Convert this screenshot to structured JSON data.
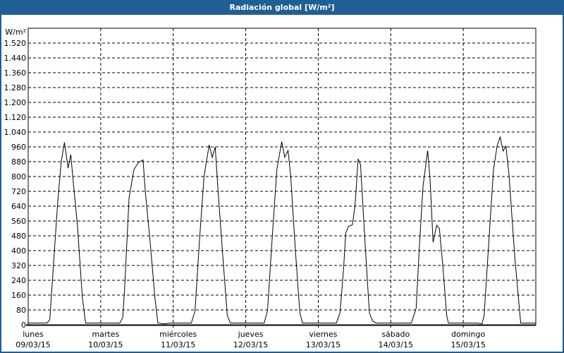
{
  "window": {
    "title": "Radiación global [W/m²]"
  },
  "chart_data": {
    "type": "line",
    "title": "Radiación global [W/m²]",
    "ylabel": "W/m²",
    "ylim": [
      0,
      1600
    ],
    "yticks": [
      0,
      80,
      160,
      240,
      320,
      400,
      480,
      560,
      640,
      720,
      800,
      880,
      960,
      1040,
      1120,
      1200,
      1280,
      1360,
      1440,
      1520
    ],
    "ytick_labels": [
      "0",
      "80",
      "160",
      "240",
      "320",
      "400",
      "480",
      "560",
      "640",
      "720",
      "800",
      "880",
      "960",
      "1.040",
      "1.120",
      "1.200",
      "1.280",
      "1.360",
      "1.440",
      "1.520"
    ],
    "xlim": [
      "09/03/15 00:00",
      "15/03/15 23:59"
    ],
    "xticks": [
      {
        "day": "lunes",
        "date": "09/03/15"
      },
      {
        "day": "martes",
        "date": "10/03/15"
      },
      {
        "day": "miércoles",
        "date": "11/03/15"
      },
      {
        "day": "jueves",
        "date": "12/03/15"
      },
      {
        "day": "viernes",
        "date": "13/03/15"
      },
      {
        "day": "sábado",
        "date": "14/03/15"
      },
      {
        "day": "domingo",
        "date": "15/03/15"
      }
    ],
    "grid": true,
    "line_color": "#000000",
    "series": [
      {
        "points": [
          [
            "09/03/15 00:00",
            9
          ],
          [
            "09/03/15 06:12",
            9
          ],
          [
            "09/03/15 07:09",
            27
          ],
          [
            "09/03/15 07:46",
            178
          ],
          [
            "09/03/15 09:42",
            648
          ],
          [
            "09/03/15 10:54",
            876
          ],
          [
            "09/03/15 12:00",
            984
          ],
          [
            "09/03/15 13:12",
            845
          ],
          [
            "09/03/15 14:06",
            918
          ],
          [
            "09/03/15 14:45",
            800
          ],
          [
            "09/03/15 16:18",
            533
          ],
          [
            "09/03/15 17:54",
            152
          ],
          [
            "09/03/15 19:00",
            9
          ],
          [
            "10/03/15 06:18",
            9
          ],
          [
            "10/03/15 07:18",
            38
          ],
          [
            "10/03/15 07:51",
            178
          ],
          [
            "10/03/15 09:24",
            686
          ],
          [
            "10/03/15 11:00",
            838
          ],
          [
            "10/03/15 12:30",
            876
          ],
          [
            "10/03/15 14:00",
            889
          ],
          [
            "10/03/15 14:48",
            711
          ],
          [
            "10/03/15 16:18",
            457
          ],
          [
            "10/03/15 17:54",
            152
          ],
          [
            "10/03/15 18:54",
            9
          ],
          [
            "10/03/15 21:00",
            5
          ],
          [
            "10/03/15 23:00",
            9
          ],
          [
            "11/03/15 06:00",
            9
          ],
          [
            "11/03/15 07:12",
            76
          ],
          [
            "11/03/15 08:42",
            457
          ],
          [
            "11/03/15 10:12",
            800
          ],
          [
            "11/03/15 11:54",
            971
          ],
          [
            "11/03/15 12:54",
            903
          ],
          [
            "11/03/15 13:54",
            960
          ],
          [
            "11/03/15 14:48",
            735
          ],
          [
            "11/03/15 16:18",
            392
          ],
          [
            "11/03/15 17:54",
            50
          ],
          [
            "11/03/15 18:54",
            9
          ],
          [
            "12/03/15 06:06",
            9
          ],
          [
            "12/03/15 07:12",
            76
          ],
          [
            "12/03/15 08:42",
            457
          ],
          [
            "12/03/15 10:18",
            838
          ],
          [
            "12/03/15 11:54",
            988
          ],
          [
            "12/03/15 12:54",
            904
          ],
          [
            "12/03/15 14:00",
            940
          ],
          [
            "12/03/15 14:54",
            800
          ],
          [
            "12/03/15 16:24",
            407
          ],
          [
            "12/03/15 17:54",
            65
          ],
          [
            "12/03/15 18:48",
            9
          ],
          [
            "13/03/15 06:00",
            9
          ],
          [
            "13/03/15 07:12",
            65
          ],
          [
            "13/03/15 08:24",
            305
          ],
          [
            "13/03/15 09:06",
            495
          ],
          [
            "13/03/15 10:00",
            531
          ],
          [
            "13/03/15 11:18",
            540
          ],
          [
            "13/03/15 12:12",
            648
          ],
          [
            "13/03/15 13:12",
            895
          ],
          [
            "13/03/15 14:00",
            864
          ],
          [
            "13/03/15 15:24",
            469
          ],
          [
            "13/03/15 16:54",
            65
          ],
          [
            "13/03/15 18:00",
            19
          ],
          [
            "13/03/15 19:12",
            9
          ],
          [
            "14/03/15 06:48",
            9
          ],
          [
            "14/03/15 08:24",
            89
          ],
          [
            "14/03/15 09:30",
            432
          ],
          [
            "14/03/15 10:42",
            750
          ],
          [
            "14/03/15 12:12",
            940
          ],
          [
            "14/03/15 13:00",
            788
          ],
          [
            "14/03/15 14:00",
            445
          ],
          [
            "14/03/15 15:12",
            537
          ],
          [
            "14/03/15 16:06",
            518
          ],
          [
            "14/03/15 17:18",
            305
          ],
          [
            "14/03/15 18:30",
            50
          ],
          [
            "14/03/15 19:06",
            9
          ],
          [
            "15/03/15 04:36",
            9
          ],
          [
            "15/03/15 06:12",
            5
          ],
          [
            "15/03/15 06:54",
            50
          ],
          [
            "15/03/15 08:24",
            432
          ],
          [
            "15/03/15 10:00",
            838
          ],
          [
            "15/03/15 11:12",
            965
          ],
          [
            "15/03/15 12:12",
            1013
          ],
          [
            "15/03/15 13:12",
            937
          ],
          [
            "15/03/15 14:06",
            964
          ],
          [
            "15/03/15 15:06",
            813
          ],
          [
            "15/03/15 17:06",
            355
          ],
          [
            "15/03/15 19:00",
            9
          ],
          [
            "15/03/15 23:59",
            9
          ]
        ]
      }
    ]
  }
}
